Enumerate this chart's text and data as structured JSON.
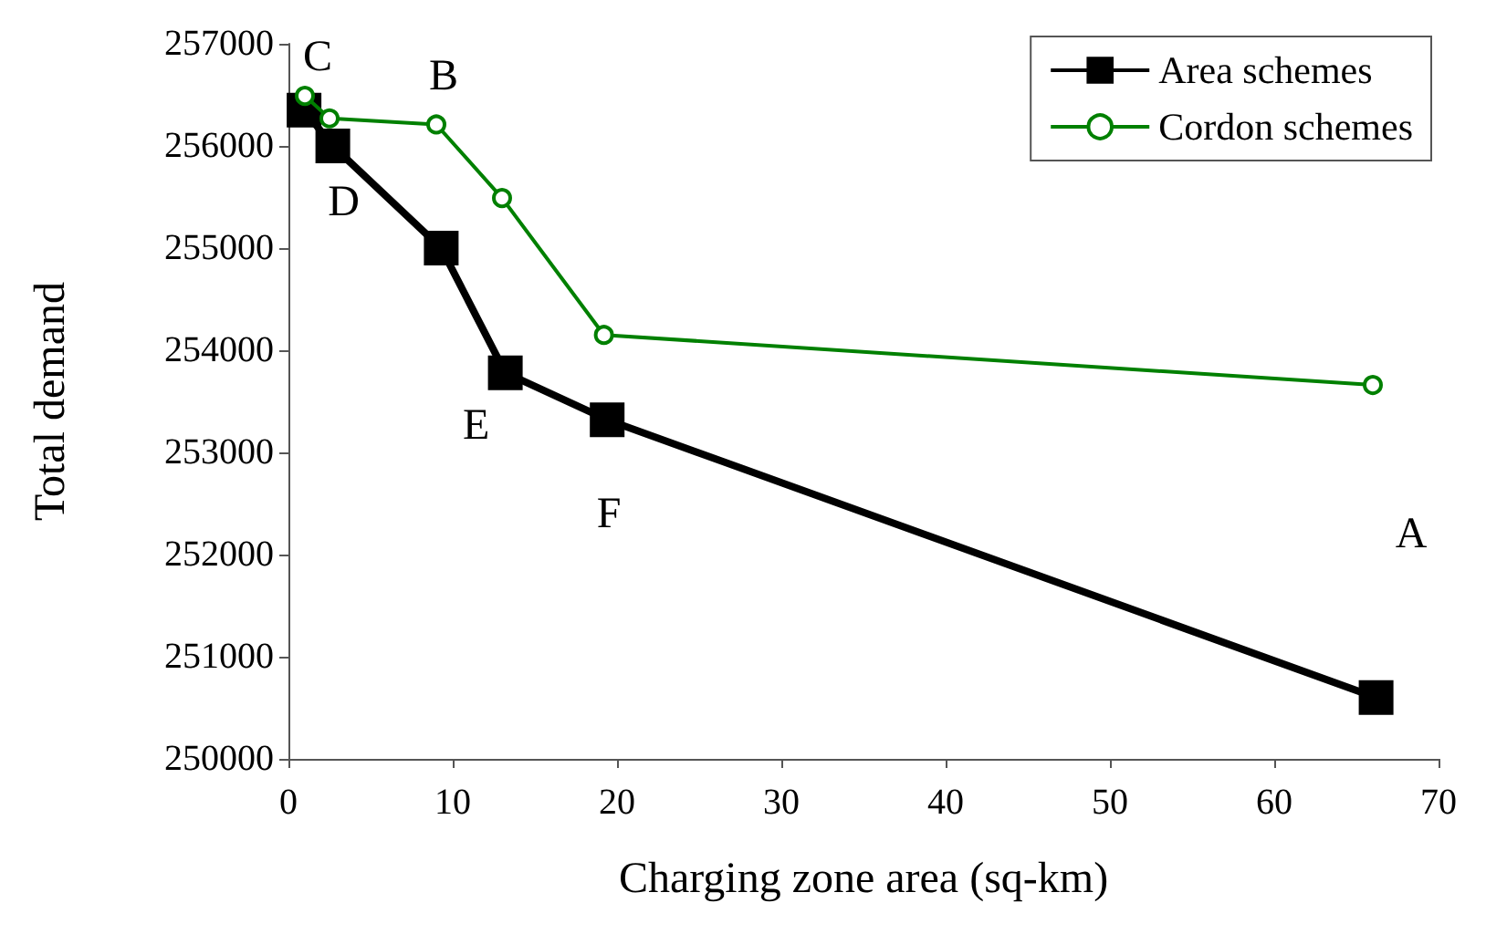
{
  "chart_data": {
    "type": "line",
    "xlabel": "Charging zone area (sq-km)",
    "ylabel": "Total demand",
    "xlim": [
      0,
      70
    ],
    "xticks": [
      0,
      10,
      20,
      30,
      40,
      50,
      60,
      70
    ],
    "ylim": [
      250000,
      257000
    ],
    "yticks": [
      250000,
      251000,
      252000,
      253000,
      254000,
      255000,
      256000,
      257000
    ],
    "grid": false,
    "legend": "top right",
    "series": [
      {
        "name": "Area schemes",
        "color": "#000000",
        "marker": "square",
        "x": [
          0.95,
          2.7,
          9.3,
          13.2,
          19.4,
          66.2
        ],
        "values": [
          256350,
          256000,
          255000,
          253780,
          253320,
          250600
        ]
      },
      {
        "name": "Cordon schemes",
        "color": "#008000",
        "marker": "circle",
        "x": [
          1.0,
          2.5,
          9.0,
          13.0,
          19.2,
          66.0
        ],
        "values": [
          256490,
          256270,
          256210,
          255490,
          254150,
          253660
        ]
      }
    ],
    "annotations": [
      {
        "text": "C",
        "x": 1.0,
        "y": 256490
      },
      {
        "text": "B",
        "x": 9.0,
        "y": 256210
      },
      {
        "text": "D",
        "x": 2.7,
        "y": 256000
      },
      {
        "text": "E",
        "x": 13.2,
        "y": 253780
      },
      {
        "text": "F",
        "x": 19.4,
        "y": 253320
      },
      "A"
    ]
  }
}
